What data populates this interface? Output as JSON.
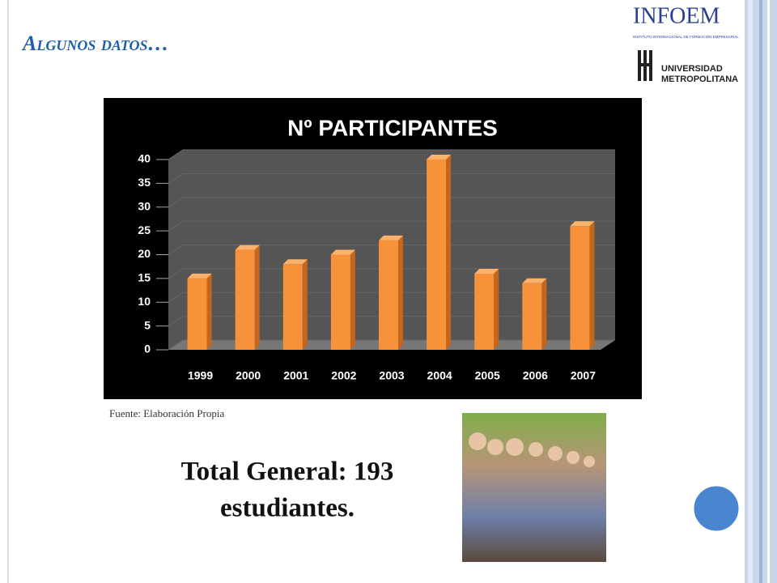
{
  "slide": {
    "title": "Algunos datos…",
    "logo_1": "INFOEM",
    "logo_1_subtitle": "INSTITUTO INTERNACIONAL DE FORMACIÓN EMPRESARIAL",
    "logo_2_line_1": "UNIVERSIDAD",
    "logo_2_line_2": "METROPOLITANA",
    "source": "Fuente: Elaboración Propia",
    "total_line_1": "Total General: 193",
    "total_line_2": "estudiantes."
  },
  "chart_data": {
    "type": "bar",
    "title": "Nº PARTICIPANTES",
    "categories": [
      "1999",
      "2000",
      "2001",
      "2002",
      "2003",
      "2004",
      "2005",
      "2006",
      "2007"
    ],
    "values": [
      15,
      21,
      18,
      20,
      23,
      40,
      16,
      14,
      26
    ],
    "color": "#f7923a",
    "ylim": [
      0,
      40
    ],
    "yticks": [
      0,
      5,
      10,
      15,
      20,
      25,
      30,
      35,
      40
    ],
    "grid": true
  }
}
